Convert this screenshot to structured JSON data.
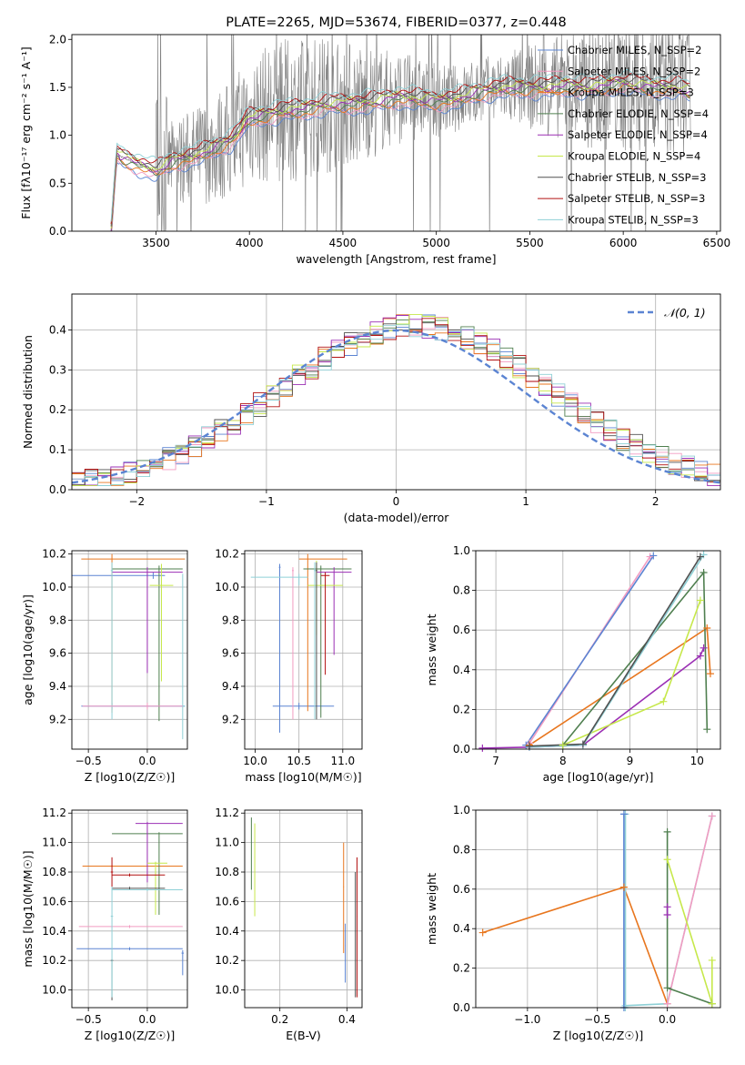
{
  "colors": {
    "gray": "#808080",
    "dash": "#5b84d2",
    "grid": "#b0b0b0",
    "series": [
      "#5b84d2",
      "#f29bc1",
      "#e8761e",
      "#4f7f4f",
      "#9b2fb4",
      "#c6e84a",
      "#505050",
      "#b21010",
      "#8fd0d6"
    ]
  },
  "chart_data": [
    {
      "type": "line",
      "title": "PLATE=2265, MJD=53674, FIBERID=0377, z=0.448",
      "xlabel": "wavelength [Angstrom, rest frame]",
      "ylabel": "Flux [fλ10⁻¹⁷ erg cm⁻² s⁻¹ A⁻¹]",
      "xlim": [
        3050,
        6520
      ],
      "ylim": [
        0.0,
        2.05
      ],
      "xticks": [
        3500,
        4000,
        4500,
        5000,
        5500,
        6000,
        6500
      ],
      "yticks": [
        0.0,
        0.5,
        1.0,
        1.5,
        2.0
      ],
      "grid": false,
      "legend_position": "top-right",
      "legend": [
        "Chabrier MILES, N_SSP=2",
        "Salpeter MILES, N_SSP=2",
        "Kroupa MILES, N_SSP=3",
        "Chabrier ELODIE, N_SSP=4",
        "Salpeter ELODIE, N_SSP=4",
        "Kroupa ELODIE, N_SSP=4",
        "Chabrier STELIB, N_SSP=3",
        "Salpeter STELIB, N_SSP=3",
        "Kroupa STELIB, N_SSP=3"
      ],
      "data_range": [
        3260,
        6360
      ],
      "model_continuum": {
        "x": [
          3260,
          3290,
          3310,
          3400,
          3500,
          3560,
          3600,
          3700,
          3800,
          3900,
          3950,
          3980,
          4000,
          4100,
          4200,
          4300,
          4400,
          4500,
          4600,
          4700,
          4800,
          4900,
          5000,
          5100,
          5200,
          5300,
          5400,
          5500,
          5600,
          5700,
          5800,
          5900,
          6000,
          6100,
          6200,
          6300,
          6360
        ],
        "y": [
          0.0,
          0.82,
          0.78,
          0.7,
          0.63,
          0.7,
          0.74,
          0.78,
          0.86,
          0.95,
          1.05,
          1.15,
          1.18,
          1.22,
          1.26,
          1.28,
          1.32,
          1.33,
          1.34,
          1.36,
          1.4,
          1.38,
          1.36,
          1.38,
          1.44,
          1.48,
          1.5,
          1.5,
          1.5,
          1.52,
          1.5,
          1.52,
          1.55,
          1.52,
          1.5,
          1.5,
          1.45
        ]
      }
    },
    {
      "type": "bar",
      "xlabel": "(data-model)/error",
      "ylabel": "Normed distribution",
      "xlim": [
        -2.5,
        2.5
      ],
      "ylim": [
        0.0,
        0.49
      ],
      "xticks": [
        -2,
        -1,
        0,
        1,
        2
      ],
      "yticks": [
        0.0,
        0.1,
        0.2,
        0.3,
        0.4
      ],
      "grid": true,
      "legend_position": "top-right",
      "legend": [
        "𝒩(0, 1)"
      ],
      "bin_width": 0.1
    },
    {
      "type": "scatter",
      "xlabel": "Z [log10(Z/Z☉)]",
      "ylabel": "age  [log10(age/yr)]",
      "xlim": [
        -0.64,
        0.34
      ],
      "ylim": [
        9.02,
        10.22
      ],
      "xticks": [
        -0.5,
        0.0
      ],
      "yticks": [
        9.2,
        9.4,
        9.6,
        9.8,
        10.0,
        10.2
      ],
      "grid": true,
      "errorbars": [
        {
          "s": 0,
          "x": 0.05,
          "xl": 0.8,
          "xr": 0.1,
          "y": 10.07,
          "yl": 0.02,
          "yh": 0.02
        },
        {
          "s": 0,
          "x": -0.3,
          "xl": 0.26,
          "xr": 0.62,
          "y": 9.28,
          "yl": 0.02,
          "yh": 0.02
        },
        {
          "s": 2,
          "x": -0.3,
          "xl": 0.26,
          "xr": 0.62,
          "y": 10.17,
          "yl": 0.93,
          "yh": 0.03
        },
        {
          "s": 3,
          "x": 0.1,
          "xl": 0.4,
          "xr": 0.2,
          "y": 10.11,
          "yl": 0.92,
          "yh": 0.02
        },
        {
          "s": 4,
          "x": 0.0,
          "xl": 0.3,
          "xr": 0.3,
          "y": 10.09,
          "yl": 0.61,
          "yh": 0.03
        },
        {
          "s": 5,
          "x": 0.12,
          "xl": 0.1,
          "xr": 0.1,
          "y": 10.01,
          "yl": 0.58,
          "yh": 0.13
        },
        {
          "s": 8,
          "x": 0.3,
          "xl": 0.02,
          "xr": 0.02,
          "y": 9.28,
          "yl": 0.2,
          "yh": 0.8
        },
        {
          "s": 8,
          "x": -0.3,
          "xl": 0.01,
          "xr": 0.01,
          "y": 10.1,
          "yl": 0.9,
          "yh": 0.05
        },
        {
          "s": 1,
          "x": 0.0,
          "xl": 0.55,
          "xr": 0.3,
          "y": 9.28,
          "yl": 0.02,
          "yh": 0.02
        }
      ]
    },
    {
      "type": "scatter",
      "xlabel": "mass [log10(M/M☉)]",
      "ylabel": "",
      "xlim": [
        9.88,
        11.22
      ],
      "ylim": [
        9.02,
        10.22
      ],
      "xticks": [
        10.0,
        10.5,
        11.0
      ],
      "yticks": [
        9.2,
        9.4,
        9.6,
        9.8,
        10.0,
        10.2
      ],
      "grid": true,
      "errorbars": [
        {
          "s": 0,
          "x": 10.5,
          "xl": 0.3,
          "xr": 0.4,
          "y": 9.28,
          "yl": 0.02,
          "yh": 0.02
        },
        {
          "s": 0,
          "x": 10.28,
          "xl": 0.01,
          "xr": 0.01,
          "y": 10.12,
          "yl": 1.0,
          "yh": 0.02
        },
        {
          "s": 1,
          "x": 10.43,
          "xl": 0.01,
          "xr": 0.01,
          "y": 10.1,
          "yl": 0.9,
          "yh": 0.02
        },
        {
          "s": 2,
          "x": 10.6,
          "xl": 0.1,
          "xr": 0.45,
          "y": 10.17,
          "yl": 0.92,
          "yh": 0.03
        },
        {
          "s": 3,
          "x": 10.75,
          "xl": 0.2,
          "xr": 0.35,
          "y": 10.11,
          "yl": 0.9,
          "yh": 0.02
        },
        {
          "s": 4,
          "x": 10.9,
          "xl": 0.2,
          "xr": 0.2,
          "y": 10.09,
          "yl": 0.5,
          "yh": 0.03
        },
        {
          "s": 5,
          "x": 10.7,
          "xl": 0.1,
          "xr": 0.3,
          "y": 10.01,
          "yl": 0.3,
          "yh": 0.15
        },
        {
          "s": 6,
          "x": 10.7,
          "xl": 0.01,
          "xr": 0.01,
          "y": 10.1,
          "yl": 0.9,
          "yh": 0.05
        },
        {
          "s": 7,
          "x": 10.8,
          "xl": 0.05,
          "xr": 0.05,
          "y": 10.07,
          "yl": 0.6,
          "yh": 0.02
        },
        {
          "s": 8,
          "x": 10.5,
          "xl": 0.55,
          "xr": 0.1,
          "y": 10.06,
          "yl": 0.05,
          "yh": 0.02
        },
        {
          "s": 8,
          "x": 10.68,
          "xl": 0.01,
          "xr": 0.01,
          "y": 10.1,
          "yl": 0.9,
          "yh": 0.05
        }
      ]
    },
    {
      "type": "line",
      "xlabel": "age  [log10(age/yr)]",
      "ylabel": "mass weight",
      "xlim": [
        6.7,
        10.35
      ],
      "ylim": [
        0.0,
        1.0
      ],
      "xticks": [
        7,
        8,
        9,
        10
      ],
      "yticks": [
        0.0,
        0.2,
        0.4,
        0.6,
        0.8,
        1.0
      ],
      "grid": true,
      "series": [
        {
          "s": 1,
          "x": [
            7.5,
            9.3
          ],
          "y": [
            0.03,
            0.97
          ]
        },
        {
          "s": 0,
          "x": [
            7.45,
            9.35
          ],
          "y": [
            0.02,
            0.975
          ]
        },
        {
          "s": 2,
          "x": [
            7.5,
            10.15,
            10.2
          ],
          "y": [
            0.02,
            0.61,
            0.38
          ]
        },
        {
          "s": 3,
          "x": [
            8.0,
            10.1,
            10.15
          ],
          "y": [
            0.02,
            0.89,
            0.1
          ]
        },
        {
          "s": 4,
          "x": [
            6.8,
            7.5,
            8.3,
            10.05,
            10.1
          ],
          "y": [
            0.005,
            0.01,
            0.02,
            0.47,
            0.51
          ]
        },
        {
          "s": 5,
          "x": [
            8.0,
            9.5,
            10.05
          ],
          "y": [
            0.02,
            0.24,
            0.75
          ]
        },
        {
          "s": 8,
          "x": [
            7.5,
            8.3,
            10.1
          ],
          "y": [
            0.01,
            0.02,
            0.98
          ]
        },
        {
          "s": 6,
          "x": [
            7.5,
            8.3,
            10.05
          ],
          "y": [
            0.015,
            0.025,
            0.97
          ]
        }
      ]
    },
    {
      "type": "scatter",
      "xlabel": "Z [log10(Z/Z☉)]",
      "ylabel": "mass [log10(M/M☉)]",
      "xlim": [
        -0.64,
        0.34
      ],
      "ylim": [
        9.88,
        11.22
      ],
      "xticks": [
        -0.5,
        0.0
      ],
      "yticks": [
        10.0,
        10.2,
        10.4,
        10.6,
        10.8,
        11.0,
        11.2
      ],
      "grid": true,
      "errorbars": [
        {
          "s": 0,
          "x": -0.15,
          "xl": 0.45,
          "xr": 0.45,
          "y": 10.28,
          "yl": 0.01,
          "yh": 0.01
        },
        {
          "s": 1,
          "x": -0.15,
          "xl": 0.43,
          "xr": 0.45,
          "y": 10.43,
          "yl": 0.01,
          "yh": 0.01
        },
        {
          "s": 2,
          "x": -0.3,
          "xl": 0.25,
          "xr": 0.6,
          "y": 10.84,
          "yl": 0.01,
          "yh": 0.01
        },
        {
          "s": 3,
          "x": 0.1,
          "xl": 0.4,
          "xr": 0.2,
          "y": 11.06,
          "yl": 0.55,
          "yh": 0.01
        },
        {
          "s": 4,
          "x": 0.0,
          "xl": 0.1,
          "xr": 0.3,
          "y": 11.13,
          "yl": 0.4,
          "yh": 0.01
        },
        {
          "s": 5,
          "x": 0.07,
          "xl": 0.07,
          "xr": 0.1,
          "y": 10.86,
          "yl": 0.35,
          "yh": 0.01
        },
        {
          "s": 6,
          "x": -0.15,
          "xl": 0.15,
          "xr": 0.3,
          "y": 10.69,
          "yl": 0.01,
          "yh": 0.01
        },
        {
          "s": 6,
          "x": -0.3,
          "xl": 0.01,
          "xr": 0.01,
          "y": 10.2,
          "yl": 0.27,
          "yh": 0.01
        },
        {
          "s": 7,
          "x": -0.15,
          "xl": 0.15,
          "xr": 0.3,
          "y": 10.78,
          "yl": 0.01,
          "yh": 0.01
        },
        {
          "s": 7,
          "x": -0.3,
          "xl": 0.01,
          "xr": 0.01,
          "y": 10.8,
          "yl": 0.1,
          "yh": 0.1
        },
        {
          "s": 8,
          "x": -0.3,
          "xl": 0.01,
          "xr": 0.01,
          "y": 10.5,
          "yl": 0.55,
          "yh": 0.2
        },
        {
          "s": 8,
          "x": 0.0,
          "xl": 0.3,
          "xr": 0.3,
          "y": 10.68,
          "yl": 0.01,
          "yh": 0.01
        },
        {
          "s": 0,
          "x": 0.3,
          "xl": 0.01,
          "xr": 0.01,
          "y": 10.25,
          "yl": 0.15,
          "yh": 0.02
        }
      ]
    },
    {
      "type": "scatter",
      "xlabel": "E(B-V)",
      "ylabel": "",
      "xlim": [
        0.095,
        0.445
      ],
      "ylim": [
        9.88,
        11.22
      ],
      "xticks": [
        0.2,
        0.4
      ],
      "yticks": [
        10.0,
        10.2,
        10.4,
        10.6,
        10.8,
        11.0,
        11.2
      ],
      "grid": true,
      "errorbars": [
        {
          "s": 3,
          "x": 0.115,
          "xl": 0.001,
          "xr": 0.001,
          "y": 11.0,
          "yl": 0.32,
          "yh": 0.17
        },
        {
          "s": 5,
          "x": 0.125,
          "xl": 0.001,
          "xr": 0.001,
          "y": 10.9,
          "yl": 0.4,
          "yh": 0.23
        },
        {
          "s": 2,
          "x": 0.39,
          "xl": 0.001,
          "xr": 0.001,
          "y": 10.7,
          "yl": 0.45,
          "yh": 0.3
        },
        {
          "s": 0,
          "x": 0.395,
          "xl": 0.001,
          "xr": 0.001,
          "y": 10.3,
          "yl": 0.25,
          "yh": 0.15
        },
        {
          "s": 7,
          "x": 0.43,
          "xl": 0.001,
          "xr": 0.001,
          "y": 10.5,
          "yl": 0.55,
          "yh": 0.4
        },
        {
          "s": 6,
          "x": 0.425,
          "xl": 0.001,
          "xr": 0.001,
          "y": 10.4,
          "yl": 0.45,
          "yh": 0.4
        }
      ]
    },
    {
      "type": "line",
      "xlabel": "Z [log10(Z/Z☉)]",
      "ylabel": "mass weight",
      "xlim": [
        -1.37,
        0.38
      ],
      "ylim": [
        0.0,
        1.0
      ],
      "xticks": [
        -1.0,
        -0.5,
        0.0
      ],
      "yticks": [
        0.0,
        0.2,
        0.4,
        0.6,
        0.8,
        1.0
      ],
      "grid": true,
      "series": [
        {
          "s": 2,
          "x": [
            -1.32,
            -0.31,
            0.0
          ],
          "y": [
            0.38,
            0.61,
            0.02
          ]
        },
        {
          "s": 8,
          "x": [
            -0.3,
            -0.3,
            -0.3,
            0.0,
            0.32
          ],
          "y": [
            0.98,
            0.0,
            0.01,
            0.02,
            0.97
          ]
        },
        {
          "s": 1,
          "x": [
            0.0,
            0.32
          ],
          "y": [
            0.02,
            0.97
          ]
        },
        {
          "s": 3,
          "x": [
            0.0,
            0.0,
            0.32
          ],
          "y": [
            0.89,
            0.1,
            0.02
          ]
        },
        {
          "s": 5,
          "x": [
            0.0,
            0.32,
            0.32
          ],
          "y": [
            0.75,
            0.02,
            0.24
          ]
        },
        {
          "s": 4,
          "x": [
            0.0,
            0.0
          ],
          "y": [
            0.47,
            0.51
          ]
        },
        {
          "s": 0,
          "x": [
            -0.31,
            -0.31
          ],
          "y": [
            0.0,
            0.98
          ]
        }
      ]
    }
  ]
}
